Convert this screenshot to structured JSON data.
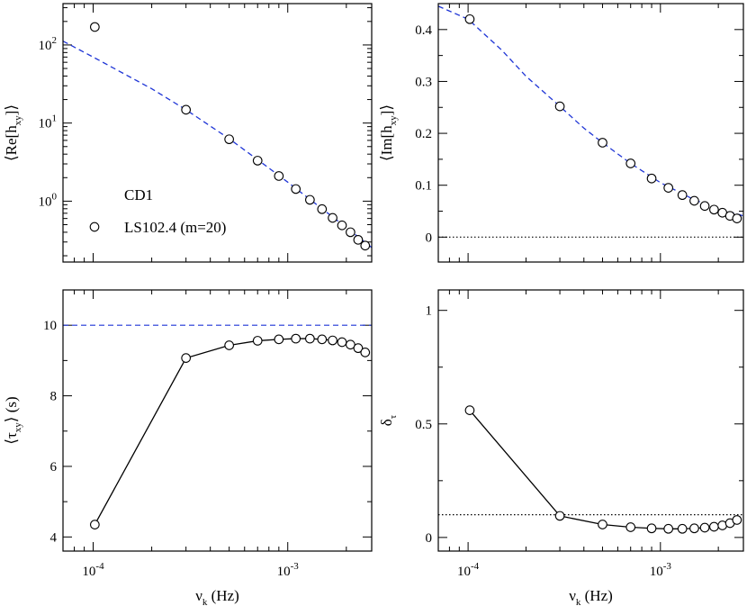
{
  "chart_data": [
    {
      "id": "re",
      "type": "scatter",
      "xscale": "log",
      "yscale": "log",
      "xlim": [
        7e-05,
        0.0027
      ],
      "ylim": [
        0.1662,
        338.5
      ],
      "ylabel": {
        "main": "⟨Re[h",
        "sub": "xy",
        "tail": "]⟩"
      },
      "xlabel": {
        "main": "",
        "sub": "",
        "tail": ""
      },
      "yticks": [
        {
          "v": 1,
          "base": "10",
          "exp": "0"
        },
        {
          "v": 10,
          "base": "10",
          "exp": "1"
        },
        {
          "v": 100,
          "base": "10",
          "exp": "2"
        }
      ],
      "xticks": [],
      "legend": {
        "title": "CD1",
        "entry": "LS102.4 (m=20)",
        "position": "bottom-left"
      },
      "series": [
        {
          "kind": "points",
          "x": [
            0.000102,
            0.0003,
            0.0005,
            0.0007,
            0.0009,
            0.0011,
            0.0013,
            0.0015,
            0.0017,
            0.0019,
            0.0021,
            0.0023,
            0.0025
          ],
          "y": [
            170,
            14.8,
            6.2,
            3.3,
            2.1,
            1.43,
            1.04,
            0.79,
            0.61,
            0.49,
            0.4,
            0.32,
            0.27
          ]
        },
        {
          "kind": "line",
          "style": "dashed",
          "color": "#1f35d6",
          "x": [
            7e-05,
            0.0001,
            0.0002,
            0.0003,
            0.0005,
            0.0007,
            0.001,
            0.0015,
            0.002,
            0.0027
          ],
          "y": [
            112,
            70,
            27.5,
            14.8,
            6.3,
            3.4,
            1.75,
            0.8,
            0.46,
            0.255
          ]
        }
      ]
    },
    {
      "id": "im",
      "type": "scatter",
      "xscale": "log",
      "yscale": "linear",
      "xlim": [
        7e-05,
        0.0027
      ],
      "ylim": [
        -0.048,
        0.45
      ],
      "ylabel": {
        "main": "⟨Im[h",
        "sub": "xy",
        "tail": "]⟩"
      },
      "xlabel": {
        "main": "",
        "sub": "",
        "tail": ""
      },
      "yticks": [
        {
          "v": 0,
          "base": "0",
          "exp": ""
        },
        {
          "v": 0.1,
          "base": "0.1",
          "exp": ""
        },
        {
          "v": 0.2,
          "base": "0.2",
          "exp": ""
        },
        {
          "v": 0.3,
          "base": "0.3",
          "exp": ""
        },
        {
          "v": 0.4,
          "base": "0.4",
          "exp": ""
        }
      ],
      "xticks": [],
      "hline": {
        "y": 0,
        "style": "dotted",
        "color": "#000000"
      },
      "series": [
        {
          "kind": "points",
          "x": [
            0.000102,
            0.0003,
            0.0005,
            0.0007,
            0.0009,
            0.0011,
            0.0013,
            0.0015,
            0.0017,
            0.0019,
            0.0021,
            0.0023,
            0.0025
          ],
          "y": [
            0.42,
            0.252,
            0.182,
            0.142,
            0.113,
            0.095,
            0.081,
            0.07,
            0.06,
            0.053,
            0.047,
            0.041,
            0.036
          ]
        },
        {
          "kind": "line",
          "style": "dashed",
          "color": "#1f35d6",
          "x": [
            7e-05,
            0.0001,
            0.00015,
            0.0002,
            0.0003,
            0.0004,
            0.0005,
            0.0007,
            0.001,
            0.0015,
            0.002,
            0.0027
          ],
          "y": [
            0.445,
            0.42,
            0.36,
            0.31,
            0.252,
            0.21,
            0.182,
            0.142,
            0.105,
            0.072,
            0.055,
            0.041
          ]
        }
      ]
    },
    {
      "id": "tau",
      "type": "line",
      "xscale": "log",
      "yscale": "linear",
      "xlim": [
        7e-05,
        0.0027
      ],
      "ylim": [
        3.6,
        11.0
      ],
      "ylabel": {
        "main": "⟨τ",
        "sub": "xy",
        "tail": "⟩ (s)"
      },
      "xlabel": {
        "main": "ν",
        "sub": "k",
        "tail": " (Hz)"
      },
      "yticks": [
        {
          "v": 4,
          "base": "4",
          "exp": ""
        },
        {
          "v": 6,
          "base": "6",
          "exp": ""
        },
        {
          "v": 8,
          "base": "8",
          "exp": ""
        },
        {
          "v": 10,
          "base": "10",
          "exp": ""
        }
      ],
      "xticks": [
        {
          "v": 0.0001,
          "base": "10",
          "exp": "-4"
        },
        {
          "v": 0.001,
          "base": "10",
          "exp": "-3"
        }
      ],
      "hline": {
        "y": 10,
        "style": "dashed",
        "color": "#1f35d6"
      },
      "series": [
        {
          "kind": "points-line",
          "x": [
            0.000102,
            0.0003,
            0.0005,
            0.0007,
            0.0009,
            0.0011,
            0.0013,
            0.0015,
            0.0017,
            0.0019,
            0.0021,
            0.0023,
            0.0025
          ],
          "y": [
            4.35,
            9.07,
            9.43,
            9.56,
            9.6,
            9.62,
            9.62,
            9.6,
            9.57,
            9.52,
            9.45,
            9.35,
            9.23
          ]
        }
      ]
    },
    {
      "id": "delta",
      "type": "line",
      "xscale": "log",
      "yscale": "linear",
      "xlim": [
        7e-05,
        0.0027
      ],
      "ylim": [
        -0.06,
        1.09
      ],
      "ylabel": {
        "main": "δ",
        "sub": "τ",
        "tail": ""
      },
      "xlabel": {
        "main": "ν",
        "sub": "k",
        "tail": " (Hz)"
      },
      "yticks": [
        {
          "v": 0,
          "base": "0",
          "exp": ""
        },
        {
          "v": 0.5,
          "base": "0.5",
          "exp": ""
        },
        {
          "v": 1,
          "base": "1",
          "exp": ""
        }
      ],
      "xticks": [
        {
          "v": 0.0001,
          "base": "10",
          "exp": "-4"
        },
        {
          "v": 0.001,
          "base": "10",
          "exp": "-3"
        }
      ],
      "hline": {
        "y": 0.1,
        "style": "dotted",
        "color": "#000000"
      },
      "series": [
        {
          "kind": "points-line",
          "x": [
            0.000102,
            0.0003,
            0.0005,
            0.0007,
            0.0009,
            0.0011,
            0.0013,
            0.0015,
            0.0017,
            0.0019,
            0.0021,
            0.0023,
            0.0025
          ],
          "y": [
            0.56,
            0.095,
            0.057,
            0.045,
            0.04,
            0.038,
            0.038,
            0.04,
            0.043,
            0.047,
            0.053,
            0.063,
            0.077
          ]
        }
      ]
    }
  ]
}
